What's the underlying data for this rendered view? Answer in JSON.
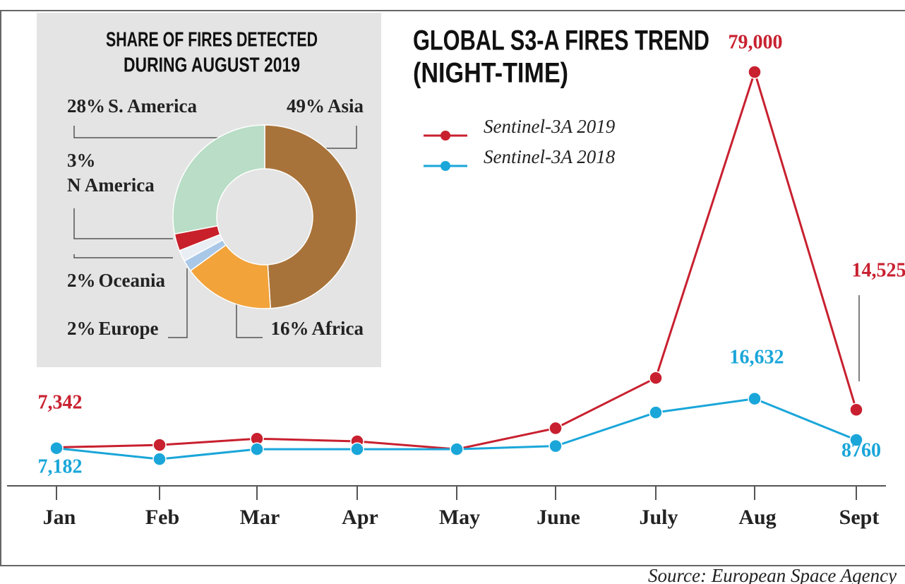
{
  "chart_data": [
    {
      "type": "line",
      "title": [
        "GLOBAL S3-A FIRES TREND",
        "(NIGHT-TIME)"
      ],
      "categories": [
        "Jan",
        "Feb",
        "Mar",
        "Apr",
        "May",
        "June",
        "July",
        "Aug",
        "Sept"
      ],
      "series": [
        {
          "name": "Sentinel-3A 2019",
          "color": "#c8202f",
          "values": [
            7342,
            7800,
            9000,
            8500,
            7000,
            11000,
            20600,
            79000,
            14525
          ],
          "value_labels": [
            "7,342",
            null,
            null,
            null,
            null,
            null,
            null,
            "79,000",
            "14,525"
          ]
        },
        {
          "name": "Sentinel-3A 2018",
          "color": "#1aa6d9",
          "values": [
            7182,
            5100,
            7000,
            7000,
            7000,
            7600,
            14000,
            16632,
            8760
          ],
          "value_labels": [
            "7,182",
            null,
            null,
            null,
            null,
            null,
            null,
            "16,632",
            "8760"
          ]
        }
      ],
      "source": "Source: European Space Agency"
    },
    {
      "type": "pie",
      "title": [
        "SHARE OF FIRES DETECTED",
        "DURING AUGUST 2019"
      ],
      "categories": [
        "Asia",
        "Africa",
        "Europe",
        "Oceania",
        "N America",
        "S. America"
      ],
      "values": [
        49,
        16,
        2,
        2,
        3,
        28
      ],
      "value_labels": [
        "49%",
        "16%",
        "2%",
        "2%",
        "3%",
        "28%"
      ],
      "colors": [
        "#a8733a",
        "#f2a33a",
        "#a9c8e8",
        "#e9eef4",
        "#c8202a",
        "#b9ddc6"
      ]
    }
  ]
}
